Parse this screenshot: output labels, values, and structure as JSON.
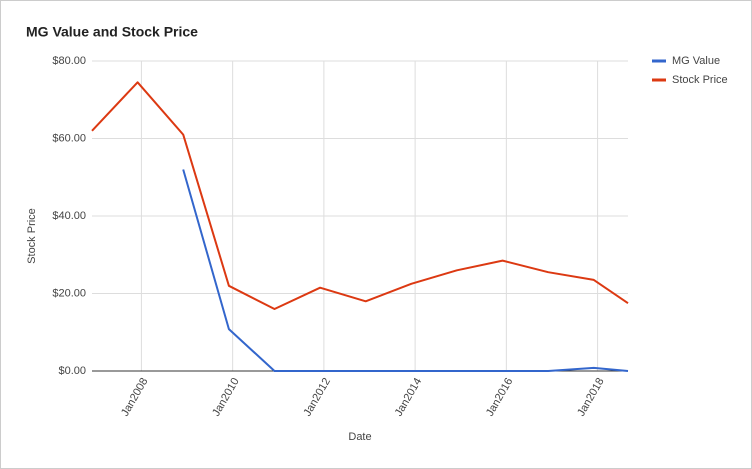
{
  "chart_data": {
    "type": "line",
    "title": "MG Value and Stock Price",
    "x_label": "Date",
    "y_label": "Stock Price",
    "x": [
      "2006-12",
      "2007-12",
      "2008-12",
      "2009-12",
      "2010-12",
      "2011-12",
      "2012-12",
      "2013-12",
      "2014-12",
      "2015-12",
      "2016-12",
      "2017-12",
      "2018-09"
    ],
    "series": [
      {
        "name": "MG Value",
        "color": "#3366cc",
        "values": [
          null,
          null,
          52,
          10.8,
          0,
          0,
          0,
          0,
          0,
          0,
          0,
          0.8,
          0
        ]
      },
      {
        "name": "Stock Price",
        "color": "#dc3912",
        "values": [
          62,
          74.5,
          61,
          22,
          16,
          21.5,
          18,
          22.5,
          26,
          28.5,
          25.5,
          23.5,
          17.5
        ]
      }
    ],
    "xlim": [
      "2006-12",
      "2018-09"
    ],
    "xticks": [
      {
        "value": "2008-01",
        "label": "Jan2008"
      },
      {
        "value": "2010-01",
        "label": "Jan2010"
      },
      {
        "value": "2012-01",
        "label": "Jan2012"
      },
      {
        "value": "2014-01",
        "label": "Jan2014"
      },
      {
        "value": "2016-01",
        "label": "Jan2016"
      },
      {
        "value": "2018-01",
        "label": "Jan2018"
      }
    ],
    "ylim": [
      0,
      80
    ],
    "yticks": [
      {
        "value": 0,
        "label": "$0.00"
      },
      {
        "value": 20,
        "label": "$20.00"
      },
      {
        "value": 40,
        "label": "$40.00"
      },
      {
        "value": 60,
        "label": "$60.00"
      },
      {
        "value": 80,
        "label": "$80.00"
      }
    ],
    "grid": true,
    "legend": "right"
  }
}
